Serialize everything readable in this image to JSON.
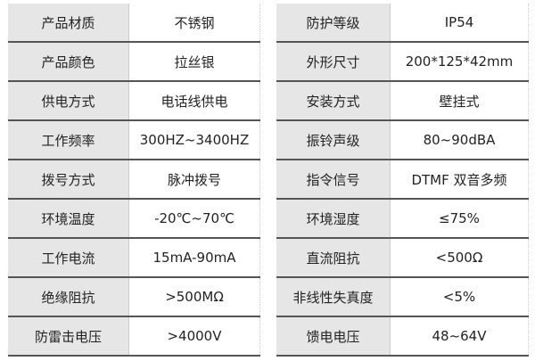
{
  "rows": [
    {
      "l1": "产品材质",
      "v1": "不锈钢",
      "l2": "防护等级",
      "v2": "IP54"
    },
    {
      "l1": "产品颜色",
      "v1": "拉丝银",
      "l2": "外形尺寸",
      "v2": "200*125*42mm"
    },
    {
      "l1": "供电方式",
      "v1": "电话线供电",
      "l2": "安装方式",
      "v2": "壁挂式"
    },
    {
      "l1": "工作频率",
      "v1": "300HZ~3400HZ",
      "l2": "振铃声级",
      "v2": "80~90dBA"
    },
    {
      "l1": "拨号方式",
      "v1": "脉冲拨号",
      "l2": "指令信号",
      "v2": "DTMF 双音多频"
    },
    {
      "l1": "环境温度",
      "v1": "-20℃~70℃",
      "l2": "环境湿度",
      "v2": "≤75%"
    },
    {
      "l1": "工作电流",
      "v1": "15mA-90mA",
      "l2": "直流阻抗",
      "v2": "<500Ω"
    },
    {
      "l1": "绝缘阻抗",
      "v1": ">500MΩ",
      "l2": "非线性失真度",
      "v2": "<5%"
    },
    {
      "l1": "防雷击电压",
      "v1": ">4000V",
      "l2": "馈电电压",
      "v2": "48~64V"
    }
  ]
}
